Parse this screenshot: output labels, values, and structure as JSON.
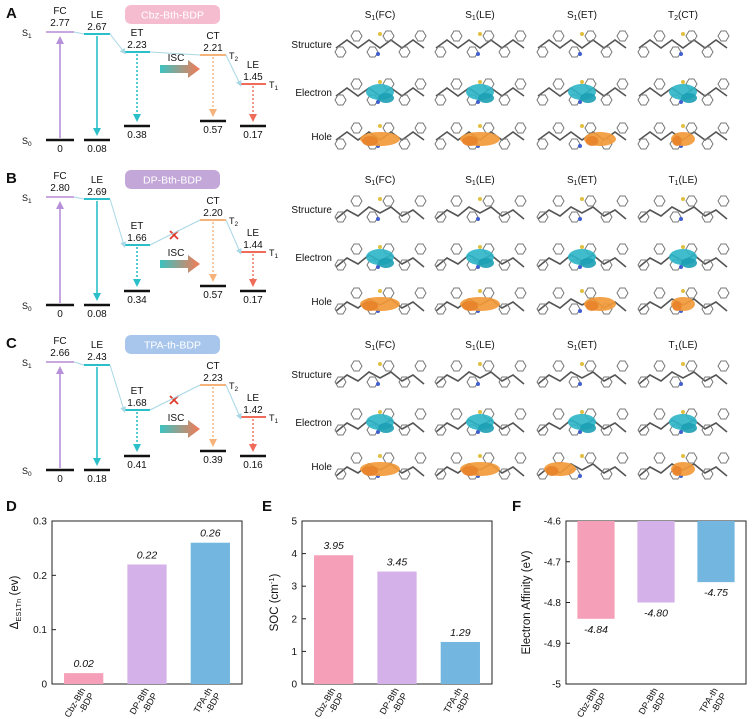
{
  "colors": {
    "pink": "#f5a0b8",
    "purple": "#d4b1e8",
    "blue": "#73b6e0",
    "teal": "#2bbfc9",
    "ab_line": "#b690d8",
    "orange": "#f5b27a",
    "red": "#f06b5a",
    "tag_pink": "#f5bcd0",
    "tag_purple": "#c3a7d8",
    "tag_blue": "#a8c6ec",
    "electron": "#2bb5c8",
    "hole": "#f29a3a"
  },
  "panels": [
    {
      "letter": "A",
      "tag": "Cbz-Bth-BDP",
      "tag_color": "#f5bcd0",
      "fc_label": "FC",
      "fc_val": "2.77",
      "le_label": "LE",
      "le_val": "2.67",
      "et_label": "ET",
      "et_val": "2.23",
      "et_ground": "0.38",
      "ct_label": "CT",
      "ct_val": "2.21",
      "ct_ground": "0.57",
      "t1_label": "LE",
      "t1_val": "1.45",
      "t1_ground": "0.17",
      "s0_ground": "0",
      "le_ground": "0.08",
      "isc": "ISC",
      "blocked": false,
      "mo_cols": [
        "S1(FC)",
        "S1(LE)",
        "S1(ET)",
        "T2(CT)"
      ]
    },
    {
      "letter": "B",
      "tag": "DP-Bth-BDP",
      "tag_color": "#c3a7d8",
      "fc_label": "FC",
      "fc_val": "2.80",
      "le_label": "LE",
      "le_val": "2.69",
      "et_label": "ET",
      "et_val": "1.66",
      "et_ground": "0.34",
      "ct_label": "CT",
      "ct_val": "2.20",
      "ct_ground": "0.57",
      "t1_label": "LE",
      "t1_val": "1.44",
      "t1_ground": "0.17",
      "s0_ground": "0",
      "le_ground": "0.08",
      "isc": "ISC",
      "blocked": true,
      "mo_cols": [
        "S1(FC)",
        "S1(LE)",
        "S1(ET)",
        "T1(LE)"
      ]
    },
    {
      "letter": "C",
      "tag": "TPA-th-BDP",
      "tag_color": "#a8c6ec",
      "fc_label": "FC",
      "fc_val": "2.66",
      "le_label": "LE",
      "le_val": "2.43",
      "et_label": "ET",
      "et_val": "1.68",
      "et_ground": "0.41",
      "ct_label": "CT",
      "ct_val": "2.23",
      "ct_ground": "0.39",
      "t1_label": "LE",
      "t1_val": "1.42",
      "t1_ground": "0.16",
      "s0_ground": "0",
      "le_ground": "0.18",
      "isc": "ISC",
      "blocked": true,
      "mo_cols": [
        "S1(FC)",
        "S1(LE)",
        "S1(ET)",
        "T1(LE)"
      ]
    }
  ],
  "state_labels": {
    "s": "S",
    "t": "T",
    "s1": "1",
    "s0": "0",
    "t1": "1",
    "t2": "2"
  },
  "mo_rows": [
    "Structure",
    "Electron",
    "Hole"
  ],
  "chart_data": [
    {
      "letter": "D",
      "type": "bar",
      "categories": [
        "Cbz-Bth-BDP",
        "DP-Bth-BDP",
        "TPA-th-BDP"
      ],
      "category_lines": [
        [
          "Cbz-Bth",
          "-BDP"
        ],
        [
          "DP-Bth",
          "-BDP"
        ],
        [
          "TPA-th",
          "-BDP"
        ]
      ],
      "values": [
        0.02,
        0.22,
        0.26
      ],
      "value_labels": [
        "0.02",
        "0.22",
        "0.26"
      ],
      "ylabel": "ΔES1Tn (ev)",
      "ylabel_parts": {
        "delta": "Δ",
        "sub": "ES1Tn",
        "unit": " (ev)"
      },
      "ylim": [
        0,
        0.3
      ],
      "yticks": [
        0,
        0.1,
        0.2,
        0.3
      ],
      "ytick_labels": [
        "0",
        "0.1",
        "0.2",
        "0.3"
      ]
    },
    {
      "letter": "E",
      "type": "bar",
      "categories": [
        "Cbz-Bth-BDP",
        "DP-Bth-BDP",
        "TPA-th-BDP"
      ],
      "category_lines": [
        [
          "Cbz-Bth",
          "-BDP"
        ],
        [
          "DP-Bth",
          "-BDP"
        ],
        [
          "TPA-th",
          "-BDP"
        ]
      ],
      "values": [
        3.95,
        3.45,
        1.29
      ],
      "value_labels": [
        "3.95",
        "3.45",
        "1.29"
      ],
      "ylabel": "SOC (cm-1)",
      "ylabel_parts": {
        "main": "SOC (cm",
        "sup": "-1",
        "end": ")"
      },
      "ylim": [
        0,
        5
      ],
      "yticks": [
        0,
        1,
        2,
        3,
        4,
        5
      ],
      "ytick_labels": [
        "0",
        "1",
        "2",
        "3",
        "4",
        "5"
      ]
    },
    {
      "letter": "F",
      "type": "bar",
      "categories": [
        "Cbz-Bth-BDP",
        "DP-Bth-BDP",
        "TPA-th-BDP"
      ],
      "category_lines": [
        [
          "Cbz-Bth",
          "-BDP"
        ],
        [
          "DP-Bth",
          "-BDP"
        ],
        [
          "TPA-th",
          "-BDP"
        ]
      ],
      "values": [
        -4.84,
        -4.8,
        -4.75
      ],
      "value_labels": [
        "-4.84",
        "-4.80",
        "-4.75"
      ],
      "ylabel": "Electron Affinity (eV)",
      "ylim": [
        -5,
        -4.6
      ],
      "inverted": true,
      "yticks": [
        -4.6,
        -4.7,
        -4.8,
        -4.9,
        -5
      ],
      "ytick_labels": [
        "-4.6",
        "-4.7",
        "-4.8",
        "-4.9",
        "-5"
      ]
    }
  ]
}
